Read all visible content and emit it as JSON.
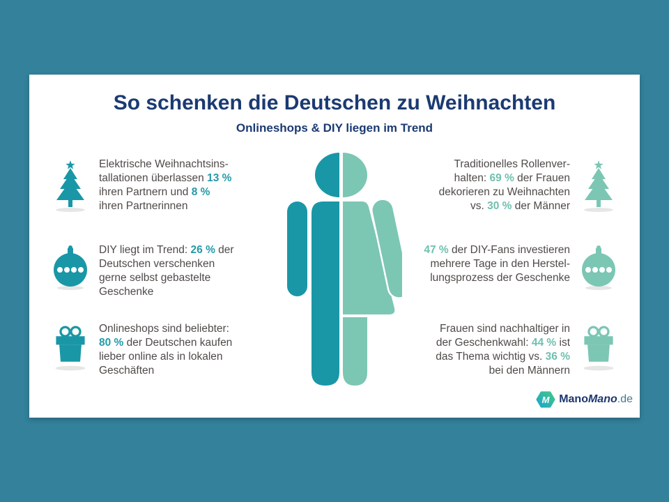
{
  "colors": {
    "background": "#33819b",
    "male": "#1a97a6",
    "female": "#7cc6b4",
    "title": "#1b3a72",
    "body": "#4f4a48",
    "hl_left": "#259aa8",
    "hl_right": "#6fc0ae"
  },
  "header": {
    "title": "So schenken die Deutschen zu Weihnachten",
    "subtitle": "Onlineshops & DIY liegen im Trend"
  },
  "stats_left": [
    {
      "icon": "christmas-tree-icon",
      "segments": [
        {
          "t": "Elektrische Weihnachtsins-\ntallationen überlassen "
        },
        {
          "t": "13 %",
          "h": true
        },
        {
          "t": "\nihren Partnern und "
        },
        {
          "t": "8 %",
          "h": true
        },
        {
          "t": "\nihren Partnerinnen"
        }
      ]
    },
    {
      "icon": "bauble-icon",
      "segments": [
        {
          "t": "DIY liegt im Trend: "
        },
        {
          "t": "26 %",
          "h": true
        },
        {
          "t": " der\nDeutschen verschenken\ngerne selbst gebastelte\nGeschenke"
        }
      ]
    },
    {
      "icon": "gift-icon",
      "segments": [
        {
          "t": "Onlineshops sind beliebter:\n"
        },
        {
          "t": "80 %",
          "h": true
        },
        {
          "t": " der Deutschen kaufen\nlieber online als in lokalen\nGeschäften"
        }
      ]
    }
  ],
  "stats_right": [
    {
      "icon": "christmas-tree-icon",
      "segments": [
        {
          "t": "Traditionelles Rollenver-\nhalten: "
        },
        {
          "t": "69 %",
          "h": true
        },
        {
          "t": " der Frauen\ndekorieren zu Weihnachten\nvs. "
        },
        {
          "t": "30 %",
          "h": true
        },
        {
          "t": " der Männer"
        }
      ]
    },
    {
      "icon": "bauble-icon",
      "segments": [
        {
          "t": "47 %",
          "h": true
        },
        {
          "t": " der DIY-Fans investieren\nmehrere Tage in den Herstel-\nlungsprozess der Geschenke"
        }
      ]
    },
    {
      "icon": "gift-icon",
      "segments": [
        {
          "t": "Frauen sind nachhaltiger in\nder Geschenkwahl: "
        },
        {
          "t": "44 %",
          "h": true
        },
        {
          "t": " ist\ndas Thema wichtig vs. "
        },
        {
          "t": "36 %",
          "h": true
        },
        {
          "t": "\nbei den Männern"
        }
      ]
    }
  ],
  "logo": {
    "badge_letter": "M",
    "name_first": "Mano",
    "name_second": "Mano",
    "tld": ".de"
  }
}
